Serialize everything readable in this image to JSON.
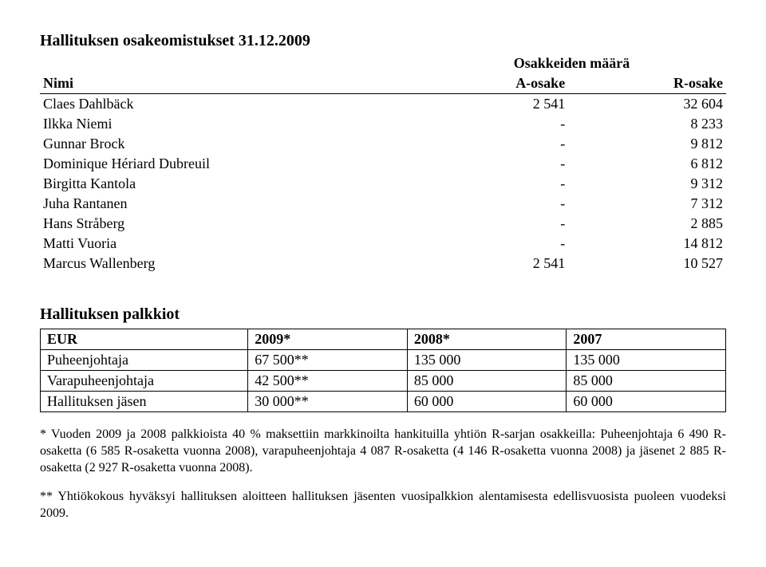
{
  "title1": "Hallituksen osakeomistukset 31.12.2009",
  "shares": {
    "group_header": "Osakkeiden määrä",
    "cols": {
      "name": "Nimi",
      "a": "A-osake",
      "r": "R-osake"
    },
    "rows": [
      {
        "name": "Claes Dahlbäck",
        "a": "2 541",
        "r": "32 604"
      },
      {
        "name": "Ilkka Niemi",
        "a": "-",
        "r": "8 233"
      },
      {
        "name": "Gunnar Brock",
        "a": "-",
        "r": "9 812"
      },
      {
        "name": "Dominique Hériard Dubreuil",
        "a": "-",
        "r": "6 812"
      },
      {
        "name": "Birgitta Kantola",
        "a": "-",
        "r": "9 312"
      },
      {
        "name": "Juha Rantanen",
        "a": "-",
        "r": "7 312"
      },
      {
        "name": "Hans Stråberg",
        "a": "-",
        "r": "2 885"
      },
      {
        "name": "Matti Vuoria",
        "a": "-",
        "r": "14 812"
      },
      {
        "name": "Marcus Wallenberg",
        "a": "2 541",
        "r": "10 527"
      }
    ]
  },
  "title2": "Hallituksen palkkiot",
  "fees": {
    "cols": [
      "EUR",
      "2009*",
      "2008*",
      "2007"
    ],
    "rows": [
      [
        "Puheenjohtaja",
        "67 500**",
        "135 000",
        "135 000"
      ],
      [
        "Varapuheenjohtaja",
        "42 500**",
        "85 000",
        "85 000"
      ],
      [
        "Hallituksen jäsen",
        "30 000**",
        "60 000",
        "60 000"
      ]
    ]
  },
  "footnote1": "* Vuoden 2009 ja 2008 palkkioista 40 % maksettiin markkinoilta hankituilla yhtiön R-sarjan osakkeilla: Puheenjohtaja 6 490 R-osaketta (6 585 R-osaketta vuonna 2008), varapuheenjohtaja 4 087 R-osaketta (4 146 R-osaketta vuonna 2008) ja jäsenet 2 885 R-osaketta (2 927 R-osaketta vuonna 2008).",
  "footnote2": "** Yhtiökokous hyväksyi hallituksen aloitteen hallituksen jäsenten vuosipalkkion alentamisesta edellisvuosista puoleen vuodeksi 2009."
}
